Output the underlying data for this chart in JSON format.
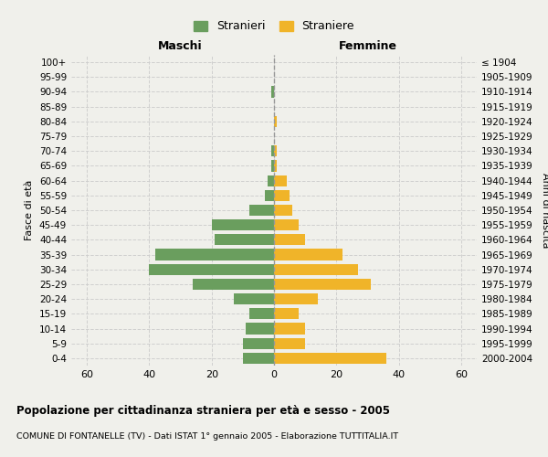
{
  "age_groups": [
    "100+",
    "95-99",
    "90-94",
    "85-89",
    "80-84",
    "75-79",
    "70-74",
    "65-69",
    "60-64",
    "55-59",
    "50-54",
    "45-49",
    "40-44",
    "35-39",
    "30-34",
    "25-29",
    "20-24",
    "15-19",
    "10-14",
    "5-9",
    "0-4"
  ],
  "birth_years": [
    "≤ 1904",
    "1905-1909",
    "1910-1914",
    "1915-1919",
    "1920-1924",
    "1925-1929",
    "1930-1934",
    "1935-1939",
    "1940-1944",
    "1945-1949",
    "1950-1954",
    "1955-1959",
    "1960-1964",
    "1965-1969",
    "1970-1974",
    "1975-1979",
    "1980-1984",
    "1985-1989",
    "1990-1994",
    "1995-1999",
    "2000-2004"
  ],
  "males": [
    0,
    0,
    1,
    0,
    0,
    0,
    1,
    1,
    2,
    3,
    8,
    20,
    19,
    38,
    40,
    26,
    13,
    8,
    9,
    10,
    10
  ],
  "females": [
    0,
    0,
    0,
    0,
    1,
    0,
    1,
    1,
    4,
    5,
    6,
    8,
    10,
    22,
    27,
    31,
    14,
    8,
    10,
    10,
    36
  ],
  "male_color": "#6a9e5e",
  "female_color": "#f0b429",
  "background_color": "#f0f0eb",
  "grid_color": "#cccccc",
  "xlim": 65,
  "title": "Popolazione per cittadinanza straniera per età e sesso - 2005",
  "subtitle": "COMUNE DI FONTANELLE (TV) - Dati ISTAT 1° gennaio 2005 - Elaborazione TUTTITALIA.IT",
  "legend_male": "Stranieri",
  "legend_female": "Straniere",
  "xlabel_left": "Maschi",
  "xlabel_right": "Femmine",
  "ylabel_left": "Fasce di età",
  "ylabel_right": "Anni di nascita"
}
